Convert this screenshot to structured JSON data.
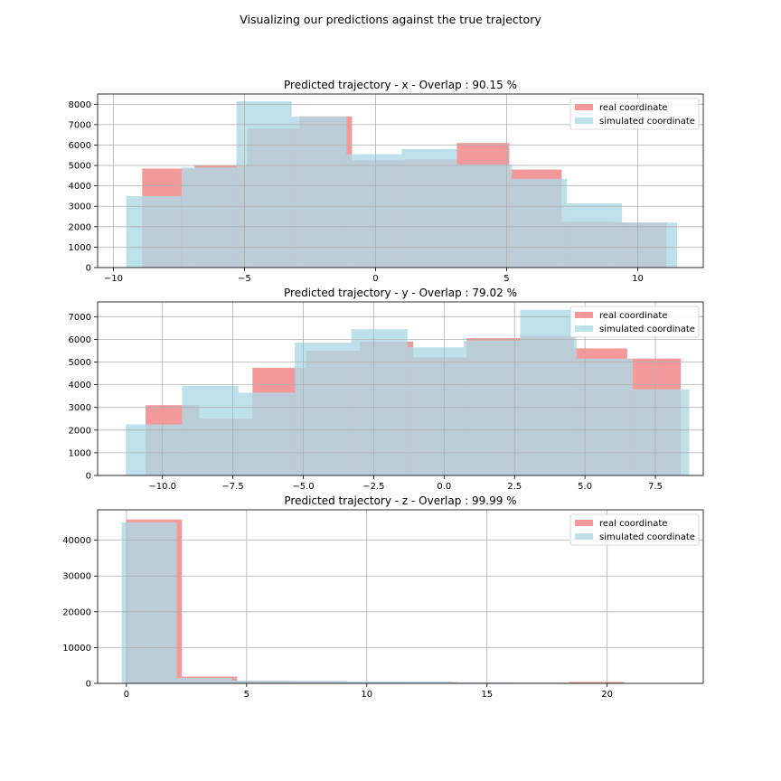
{
  "figure": {
    "suptitle": "Visualizing our predictions against the true trajectory"
  },
  "colors": {
    "real": "#f08080",
    "simulated": "#add8e6",
    "grid": "#b0b0b0"
  },
  "chart_data": [
    {
      "type": "histogram",
      "title": "Predicted trajectory - x - Overlap : 90.15 %",
      "xlim": [
        -10.6,
        12.5
      ],
      "ylim": [
        0,
        8500
      ],
      "xticks": [
        -10,
        -5,
        0,
        5,
        10
      ],
      "xtick_labels": [
        "−10",
        "−5",
        "0",
        "5",
        "10"
      ],
      "yticks": [
        0,
        1000,
        2000,
        3000,
        4000,
        5000,
        6000,
        7000,
        8000
      ],
      "grid": true,
      "legend_position": "top-right",
      "series": [
        {
          "name": "real coordinate",
          "edges": [
            -8.9,
            -6.9,
            -4.9,
            -2.9,
            -0.9,
            1.1,
            3.1,
            5.1,
            7.1,
            9.1,
            11.1
          ],
          "values": [
            4850,
            4980,
            6800,
            7400,
            5250,
            5300,
            6100,
            4800,
            2250,
            2200
          ]
        },
        {
          "name": "simulated coordinate",
          "edges": [
            -9.5,
            -7.4,
            -5.3,
            -3.2,
            -1.1,
            1.0,
            3.1,
            5.2,
            7.3,
            9.4,
            11.5
          ],
          "values": [
            3500,
            4900,
            8150,
            7400,
            5550,
            5800,
            5050,
            4350,
            3150,
            2200
          ]
        }
      ]
    },
    {
      "type": "histogram",
      "title": "Predicted trajectory - y - Overlap : 79.02 %",
      "xlim": [
        -12.3,
        9.2
      ],
      "ylim": [
        0,
        7650
      ],
      "xticks": [
        -10,
        -7.5,
        -5,
        -2.5,
        0,
        2.5,
        5,
        7.5
      ],
      "xtick_labels": [
        "−10.0",
        "−7.5",
        "−5.0",
        "−2.5",
        "0.0",
        "2.5",
        "5.0",
        "7.5"
      ],
      "yticks": [
        0,
        1000,
        2000,
        3000,
        4000,
        5000,
        6000,
        7000
      ],
      "grid": true,
      "legend_position": "top-right",
      "series": [
        {
          "name": "real coordinate",
          "edges": [
            -10.6,
            -8.7,
            -6.8,
            -4.9,
            -3.0,
            -1.1,
            0.8,
            2.7,
            4.6,
            6.5,
            8.4
          ],
          "values": [
            3100,
            2500,
            4750,
            5500,
            5900,
            5200,
            6050,
            6150,
            5600,
            5150
          ]
        },
        {
          "name": "simulated coordinate",
          "edges": [
            -11.3,
            -9.3,
            -7.3,
            -5.3,
            -3.3,
            -1.3,
            0.7,
            2.7,
            4.7,
            6.7,
            8.7
          ],
          "values": [
            2250,
            3950,
            3650,
            5850,
            6450,
            5650,
            5950,
            7300,
            5150,
            3800
          ]
        }
      ]
    },
    {
      "type": "histogram",
      "title": "Predicted trajectory - z - Overlap : 99.99 %",
      "xlim": [
        -1.2,
        24
      ],
      "ylim": [
        0,
        48500
      ],
      "xticks": [
        0,
        5,
        10,
        15,
        20
      ],
      "xtick_labels": [
        "0",
        "5",
        "10",
        "15",
        "20"
      ],
      "yticks": [
        0,
        10000,
        20000,
        30000,
        40000
      ],
      "grid": true,
      "legend_position": "top-right",
      "series": [
        {
          "name": "real coordinate",
          "edges": [
            0,
            2.3,
            4.6,
            6.9,
            9.2,
            11.5,
            13.8,
            16.1,
            18.4,
            20.7,
            23
          ],
          "values": [
            45800,
            1900,
            700,
            600,
            450,
            350,
            250,
            200,
            400,
            100
          ]
        },
        {
          "name": "simulated coordinate",
          "edges": [
            -0.2,
            2.1,
            4.4,
            6.7,
            9.0,
            11.3,
            13.6,
            15.9,
            18.2,
            20.5,
            22.8
          ],
          "values": [
            45000,
            1500,
            800,
            700,
            500,
            500,
            300,
            200,
            150,
            100
          ]
        }
      ]
    }
  ]
}
